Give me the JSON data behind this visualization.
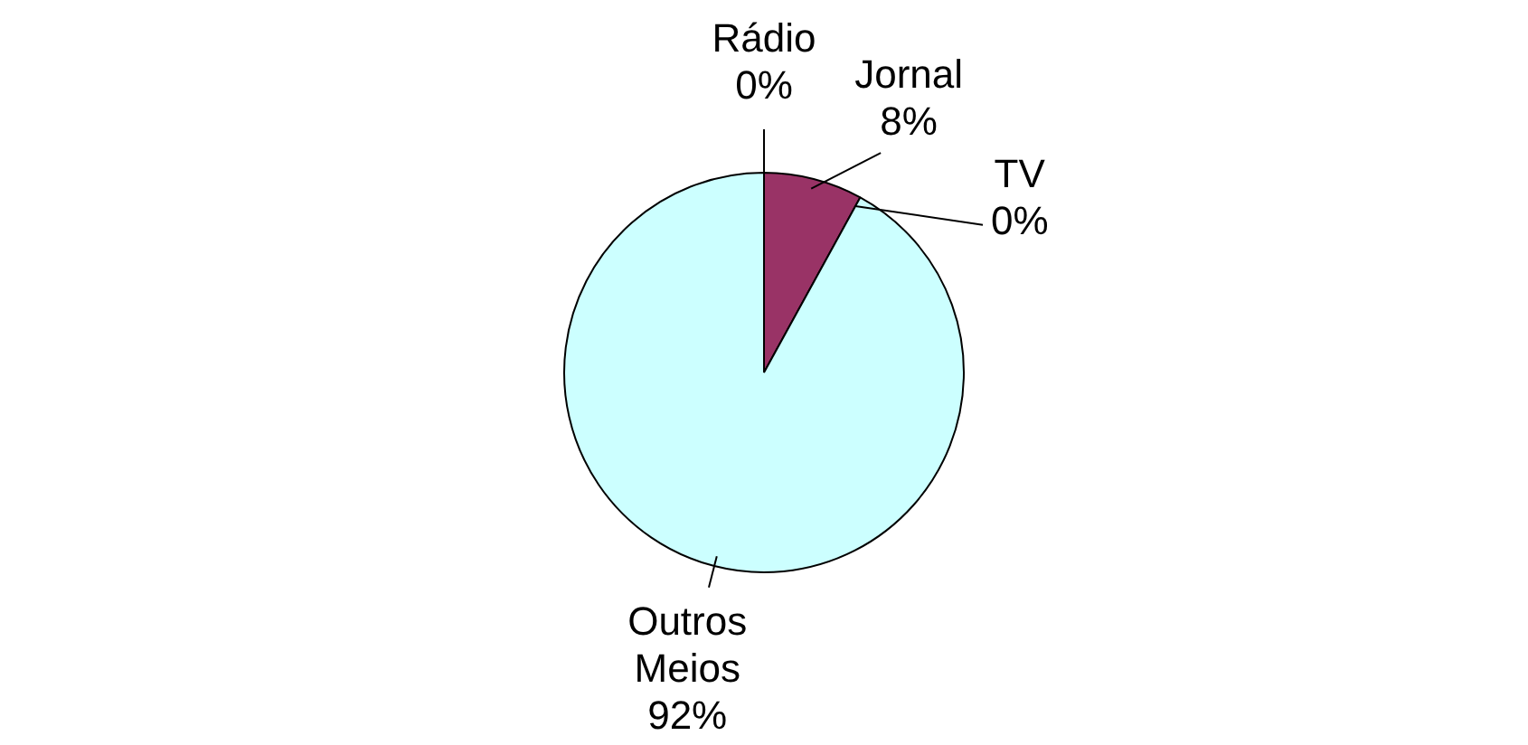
{
  "chart_data": {
    "type": "pie",
    "categories": [
      "Rádio",
      "Jornal",
      "TV",
      "Outros Meios"
    ],
    "values": [
      0,
      8,
      0,
      92
    ],
    "value_labels": [
      "0%",
      "8%",
      "0%",
      "92%"
    ],
    "colors": [
      "#ffffff",
      "#993366",
      "#999966",
      "#ccffff"
    ],
    "legend": false
  }
}
